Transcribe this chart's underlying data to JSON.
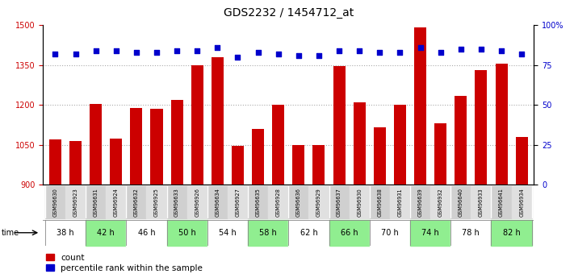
{
  "title": "GDS2232 / 1454712_at",
  "samples": [
    "GSM96630",
    "GSM96923",
    "GSM96631",
    "GSM96924",
    "GSM96632",
    "GSM96925",
    "GSM96633",
    "GSM96926",
    "GSM96634",
    "GSM96927",
    "GSM96635",
    "GSM96928",
    "GSM96636",
    "GSM96929",
    "GSM96637",
    "GSM96930",
    "GSM96638",
    "GSM96931",
    "GSM96639",
    "GSM96932",
    "GSM96640",
    "GSM96933",
    "GSM96641",
    "GSM96934"
  ],
  "counts": [
    1070,
    1065,
    1205,
    1075,
    1190,
    1185,
    1220,
    1350,
    1380,
    1045,
    1110,
    1200,
    1050,
    1050,
    1345,
    1210,
    1115,
    1200,
    1490,
    1130,
    1235,
    1330,
    1355,
    1080
  ],
  "percentiles": [
    82,
    82,
    84,
    84,
    83,
    83,
    84,
    84,
    86,
    80,
    83,
    82,
    81,
    81,
    84,
    84,
    83,
    83,
    86,
    83,
    85,
    85,
    84,
    82
  ],
  "time_labels": [
    "38 h",
    "42 h",
    "46 h",
    "50 h",
    "54 h",
    "58 h",
    "62 h",
    "66 h",
    "70 h",
    "74 h",
    "78 h",
    "82 h"
  ],
  "bar_color": "#cc0000",
  "dot_color": "#0000cc",
  "ylim_left": [
    900,
    1500
  ],
  "ylim_right": [
    0,
    100
  ],
  "yticks_left": [
    900,
    1050,
    1200,
    1350,
    1500
  ],
  "yticks_right": [
    0,
    25,
    50,
    75,
    100
  ],
  "grid_color": "#aaaaaa",
  "bar_width": 0.6,
  "title_fontsize": 10,
  "tick_fontsize": 7,
  "legend_fontsize": 7.5,
  "sample_bg_even": "#d0d0d0",
  "sample_bg_odd": "#e0e0e0",
  "time_bg_even": "#ffffff",
  "time_bg_odd": "#90ee90"
}
